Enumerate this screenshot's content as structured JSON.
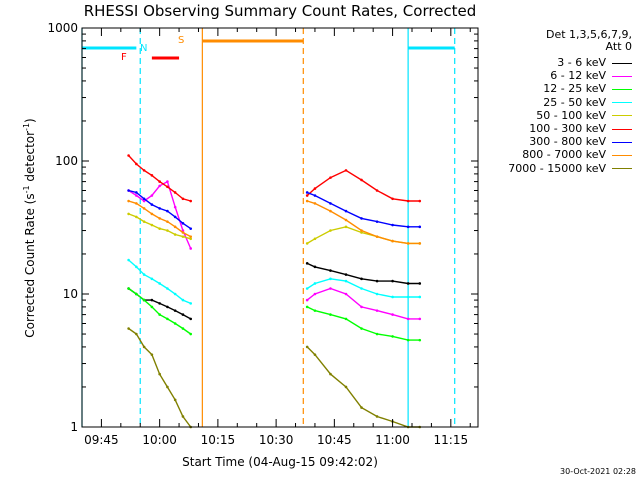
{
  "chart_data": {
    "type": "line",
    "title": "RHESSI Observing Summary Count Rates, Corrected",
    "xlabel": "Start Time (04-Aug-15 09:42:02)",
    "ylabel": "Corrected Count Rate (s⁻¹ detector⁻¹)",
    "ylabel_parts": {
      "main": "Corrected Count Rate (s",
      "sup1": "-1",
      "mid": " detector",
      "sup2": "-1",
      "end": ")"
    },
    "y_scale": "log",
    "ylim": [
      1,
      1000
    ],
    "xlim": [
      "09:40",
      "11:22"
    ],
    "y_ticks": [
      "1",
      "10",
      "100",
      "1000"
    ],
    "x_ticks": [
      "09:45",
      "10:00",
      "10:15",
      "10:30",
      "10:45",
      "11:00",
      "11:15"
    ],
    "legend_header": [
      "Det 1,3,5,6,7,9,",
      "Att 0"
    ],
    "legend_placement": "right",
    "timestamp": "30-Oct-2021 02:28",
    "flag_labels": {
      "saa": "S",
      "night": "N",
      "flare": "F"
    },
    "colors": {
      "saa": "#ff8c00",
      "night": "#00e5ff",
      "flare": "#ff0000",
      "axes": "#000000"
    },
    "flags": {
      "night_bars": [
        [
          "09:40",
          "09:54"
        ],
        [
          "11:04",
          "11:16"
        ]
      ],
      "night_lines": [
        "09:40",
        "09:55",
        "11:04",
        "11:16"
      ],
      "saa_bar": [
        "10:11",
        "10:37"
      ],
      "saa_lines": [
        "10:11",
        "10:37"
      ],
      "flare_bar": [
        "09:58",
        "10:05"
      ]
    },
    "series": [
      {
        "name": "3 - 6 keV",
        "color": "#000000",
        "x": [
          "09:52",
          "09:54",
          "09:56",
          "09:58",
          "10:00",
          "10:02",
          "10:04",
          "10:06",
          "10:08",
          "10:38",
          "10:40",
          "10:44",
          "10:48",
          "10:52",
          "10:56",
          "11:00",
          "11:04",
          "11:07"
        ],
        "y": [
          11,
          10,
          9,
          9,
          8.5,
          8,
          7.5,
          7,
          6.5,
          17,
          16,
          15,
          14,
          13,
          12.5,
          12.5,
          12,
          12
        ]
      },
      {
        "name": "6 - 12 keV",
        "color": "#ff00ff",
        "x": [
          "09:52",
          "09:54",
          "09:56",
          "09:58",
          "10:00",
          "10:02",
          "10:04",
          "10:06",
          "10:08",
          "10:38",
          "10:40",
          "10:44",
          "10:48",
          "10:52",
          "10:56",
          "11:00",
          "11:04",
          "11:07"
        ],
        "y": [
          60,
          55,
          50,
          55,
          65,
          70,
          45,
          30,
          22,
          9,
          10,
          11,
          10,
          8,
          7.5,
          7,
          6.5,
          6.5
        ]
      },
      {
        "name": "12 - 25 keV",
        "color": "#00ff00",
        "x": [
          "09:52",
          "09:54",
          "09:56",
          "09:58",
          "10:00",
          "10:02",
          "10:04",
          "10:06",
          "10:08",
          "10:38",
          "10:40",
          "10:44",
          "10:48",
          "10:52",
          "10:56",
          "11:00",
          "11:04",
          "11:07"
        ],
        "y": [
          11,
          10,
          9,
          8,
          7,
          6.5,
          6,
          5.5,
          5,
          8,
          7.5,
          7,
          6.5,
          5.5,
          5,
          4.8,
          4.5,
          4.5
        ]
      },
      {
        "name": "25 - 50 keV",
        "color": "#00ffff",
        "x": [
          "09:52",
          "09:54",
          "09:56",
          "09:58",
          "10:00",
          "10:02",
          "10:04",
          "10:06",
          "10:08",
          "10:38",
          "10:40",
          "10:44",
          "10:48",
          "10:52",
          "10:56",
          "11:00",
          "11:04",
          "11:07"
        ],
        "y": [
          18,
          16,
          14,
          13,
          12,
          11,
          10,
          9,
          8.5,
          11,
          12,
          13,
          12.5,
          11,
          10,
          9.5,
          9.5,
          9.5
        ]
      },
      {
        "name": "50 - 100 keV",
        "color": "#cccc00",
        "x": [
          "09:52",
          "09:54",
          "09:56",
          "09:58",
          "10:00",
          "10:02",
          "10:04",
          "10:06",
          "10:08",
          "10:38",
          "10:40",
          "10:44",
          "10:48",
          "10:52",
          "10:56",
          "11:00",
          "11:04",
          "11:07"
        ],
        "y": [
          40,
          38,
          35,
          33,
          31,
          30,
          28,
          27,
          26,
          24,
          26,
          30,
          32,
          29,
          27,
          25,
          24,
          24
        ]
      },
      {
        "name": "100 - 300 keV",
        "color": "#ff0000",
        "x": [
          "09:52",
          "09:54",
          "09:56",
          "09:58",
          "10:00",
          "10:02",
          "10:04",
          "10:06",
          "10:08",
          "10:38",
          "10:40",
          "10:44",
          "10:48",
          "10:52",
          "10:56",
          "11:00",
          "11:04",
          "11:07"
        ],
        "y": [
          110,
          95,
          85,
          78,
          70,
          64,
          58,
          52,
          50,
          55,
          62,
          75,
          85,
          72,
          60,
          52,
          50,
          50
        ]
      },
      {
        "name": "300 - 800 keV",
        "color": "#0000ff",
        "x": [
          "09:52",
          "09:54",
          "09:56",
          "09:58",
          "10:00",
          "10:02",
          "10:04",
          "10:06",
          "10:08",
          "10:38",
          "10:40",
          "10:44",
          "10:48",
          "10:52",
          "10:56",
          "11:00",
          "11:04",
          "11:07"
        ],
        "y": [
          60,
          58,
          52,
          47,
          44,
          42,
          38,
          34,
          31,
          58,
          55,
          48,
          42,
          37,
          35,
          33,
          32,
          32
        ]
      },
      {
        "name": "800 - 7000 keV",
        "color": "#ff8c00",
        "x": [
          "09:52",
          "09:54",
          "09:56",
          "09:58",
          "10:00",
          "10:02",
          "10:04",
          "10:06",
          "10:08",
          "10:38",
          "10:40",
          "10:44",
          "10:48",
          "10:52",
          "10:56",
          "11:00",
          "11:04",
          "11:07"
        ],
        "y": [
          50,
          48,
          44,
          40,
          37,
          35,
          32,
          29,
          27,
          50,
          48,
          42,
          36,
          30,
          27,
          25,
          24,
          24
        ]
      },
      {
        "name": "7000 - 15000 keV",
        "color": "#808000",
        "x": [
          "09:52",
          "09:54",
          "09:56",
          "09:58",
          "10:00",
          "10:02",
          "10:04",
          "10:06",
          "10:08",
          "10:38",
          "10:40",
          "10:44",
          "10:48",
          "10:52",
          "10:56",
          "11:00",
          "11:04",
          "11:07"
        ],
        "y": [
          5.5,
          5,
          4,
          3.5,
          2.5,
          2,
          1.6,
          1.2,
          1,
          4,
          3.5,
          2.5,
          2,
          1.4,
          1.2,
          1.1,
          1,
          1
        ]
      }
    ]
  }
}
